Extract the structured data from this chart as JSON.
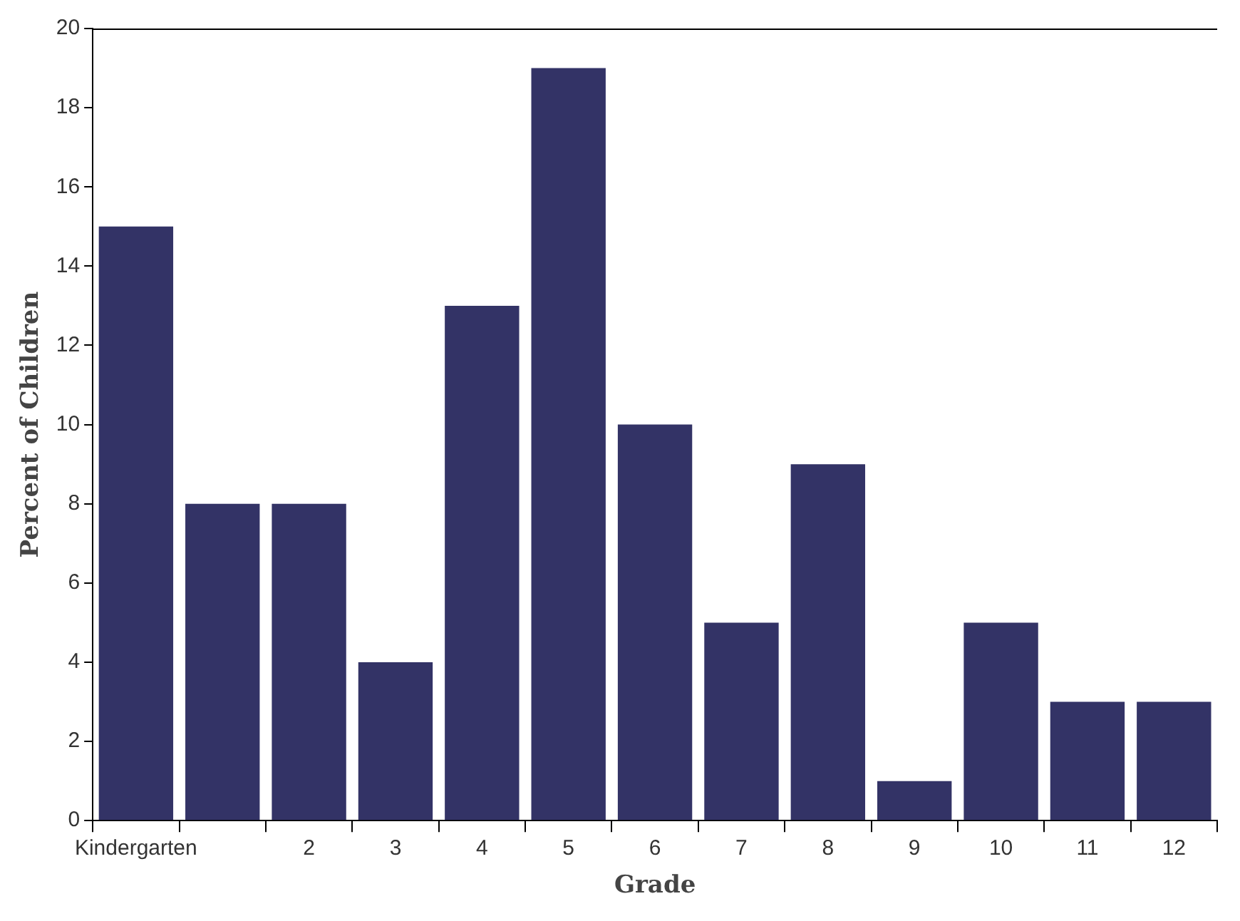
{
  "chart_data": {
    "type": "bar",
    "xlabel": "Grade",
    "ylabel": "Percent of Children",
    "categories": [
      "Kindergarten",
      null,
      "2",
      "3",
      "4",
      "5",
      "6",
      "7",
      "8",
      "9",
      "10",
      "11",
      "12"
    ],
    "values": [
      15,
      8,
      8,
      4,
      13,
      19,
      10,
      5,
      9,
      1,
      5,
      3,
      3
    ],
    "color": "#333366",
    "ylim": [
      0,
      20
    ],
    "yticks": [
      0,
      2,
      4,
      6,
      8,
      10,
      12,
      14,
      16,
      18,
      20
    ],
    "grid": false,
    "legend": false
  }
}
